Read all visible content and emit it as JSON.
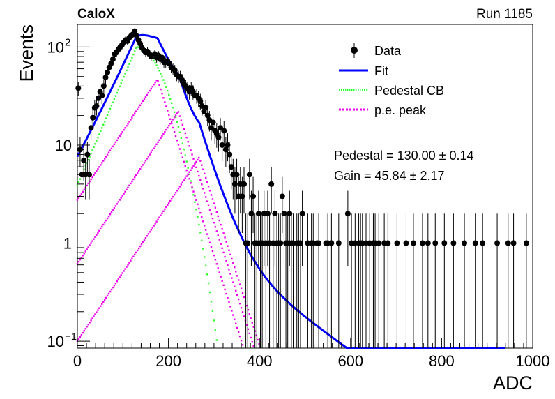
{
  "header": {
    "experiment": "CaloX",
    "run": "Run 1185"
  },
  "fit_results": {
    "pedestal": "Pedestal = 130.00 ± 0.14",
    "gain": "Gain = 45.84 ± 2.17"
  },
  "colors": {
    "data": "#000000",
    "fit": "#0000ff",
    "pedestal": "#33ff33",
    "pe_peak": "#ee00ee"
  },
  "chart_data": {
    "type": "scatter",
    "xlabel": "ADC",
    "ylabel": "Events",
    "xlim": [
      0,
      1000
    ],
    "ylim": [
      0.085,
      170
    ],
    "yscale": "log",
    "grid": false,
    "legend_position": "top-right",
    "x_ticks": [
      "0",
      "200",
      "400",
      "600",
      "800",
      "1000"
    ],
    "y_ticks": [
      {
        "value": 0.1,
        "label": "10",
        "sup": "−1"
      },
      {
        "value": 1,
        "label": "1",
        "sup": ""
      },
      {
        "value": 10,
        "label": "10",
        "sup": ""
      },
      {
        "value": 100,
        "label": "10",
        "sup": "2"
      }
    ],
    "legend": [
      {
        "name": "Data",
        "style": "marker"
      },
      {
        "name": "Fit",
        "style": "solid"
      },
      {
        "name": "Pedestal CB",
        "style": "dotted-green"
      },
      {
        "name": "p.e. peak",
        "style": "dotted-magenta"
      }
    ],
    "series": [
      {
        "name": "Data",
        "points": [
          [
            2,
            38
          ],
          [
            6,
            9
          ],
          [
            10,
            5
          ],
          [
            14,
            7
          ],
          [
            18,
            5
          ],
          [
            22,
            8
          ],
          [
            26,
            5
          ],
          [
            30,
            15
          ],
          [
            34,
            19
          ],
          [
            38,
            24
          ],
          [
            42,
            25
          ],
          [
            46,
            30
          ],
          [
            50,
            35
          ],
          [
            54,
            32
          ],
          [
            58,
            40
          ],
          [
            62,
            49
          ],
          [
            66,
            55
          ],
          [
            70,
            62
          ],
          [
            74,
            68
          ],
          [
            78,
            75
          ],
          [
            82,
            85
          ],
          [
            86,
            88
          ],
          [
            90,
            95
          ],
          [
            94,
            100
          ],
          [
            98,
            105
          ],
          [
            102,
            112
          ],
          [
            106,
            118
          ],
          [
            110,
            115
          ],
          [
            114,
            125
          ],
          [
            118,
            130
          ],
          [
            122,
            135
          ],
          [
            126,
            145
          ],
          [
            130,
            130
          ],
          [
            134,
            118
          ],
          [
            138,
            108
          ],
          [
            142,
            98
          ],
          [
            146,
            92
          ],
          [
            150,
            88
          ],
          [
            154,
            90
          ],
          [
            158,
            85
          ],
          [
            162,
            80
          ],
          [
            166,
            80
          ],
          [
            170,
            85
          ],
          [
            174,
            78
          ],
          [
            178,
            82
          ],
          [
            182,
            75
          ],
          [
            186,
            78
          ],
          [
            190,
            70
          ],
          [
            194,
            70
          ],
          [
            198,
            72
          ],
          [
            202,
            68
          ],
          [
            206,
            62
          ],
          [
            210,
            60
          ],
          [
            214,
            58
          ],
          [
            218,
            52
          ],
          [
            222,
            50
          ],
          [
            226,
            50
          ],
          [
            230,
            46
          ],
          [
            234,
            42
          ],
          [
            238,
            40
          ],
          [
            242,
            38
          ],
          [
            246,
            35
          ],
          [
            250,
            38
          ],
          [
            254,
            35
          ],
          [
            258,
            32
          ],
          [
            262,
            32
          ],
          [
            266,
            30
          ],
          [
            270,
            28
          ],
          [
            274,
            25
          ],
          [
            278,
            22
          ],
          [
            282,
            24
          ],
          [
            286,
            20
          ],
          [
            290,
            18
          ],
          [
            294,
            15
          ],
          [
            298,
            17
          ],
          [
            302,
            14
          ],
          [
            306,
            13
          ],
          [
            310,
            12
          ],
          [
            314,
            15
          ],
          [
            318,
            10
          ],
          [
            322,
            14
          ],
          [
            326,
            9
          ],
          [
            330,
            10
          ],
          [
            334,
            8
          ],
          [
            338,
            6
          ],
          [
            342,
            5
          ],
          [
            346,
            4
          ],
          [
            350,
            5
          ],
          [
            354,
            3
          ],
          [
            358,
            4
          ],
          [
            362,
            3
          ],
          [
            366,
            4
          ],
          [
            370,
            1
          ],
          [
            374,
            1
          ],
          [
            378,
            5
          ],
          [
            382,
            2
          ],
          [
            386,
            3
          ],
          [
            390,
            1
          ],
          [
            394,
            1
          ],
          [
            398,
            2
          ],
          [
            402,
            1
          ],
          [
            406,
            1
          ],
          [
            410,
            2
          ],
          [
            414,
            1
          ],
          [
            418,
            2
          ],
          [
            422,
            1
          ],
          [
            426,
            4
          ],
          [
            430,
            1
          ],
          [
            434,
            2
          ],
          [
            438,
            1
          ],
          [
            442,
            1
          ],
          [
            446,
            1
          ],
          [
            450,
            3
          ],
          [
            454,
            2
          ],
          [
            458,
            1
          ],
          [
            462,
            1
          ],
          [
            466,
            2
          ],
          [
            470,
            1
          ],
          [
            474,
            1
          ],
          [
            482,
            1
          ],
          [
            486,
            1
          ],
          [
            490,
            1
          ],
          [
            494,
            2
          ],
          [
            506,
            1
          ],
          [
            514,
            1
          ],
          [
            518,
            1
          ],
          [
            526,
            1
          ],
          [
            530,
            1
          ],
          [
            546,
            1
          ],
          [
            550,
            1
          ],
          [
            558,
            1
          ],
          [
            574,
            1
          ],
          [
            594,
            2
          ],
          [
            602,
            1
          ],
          [
            610,
            1
          ],
          [
            618,
            1
          ],
          [
            622,
            1
          ],
          [
            626,
            1
          ],
          [
            634,
            1
          ],
          [
            642,
            1
          ],
          [
            650,
            1
          ],
          [
            654,
            1
          ],
          [
            662,
            1
          ],
          [
            674,
            1
          ],
          [
            682,
            1
          ],
          [
            702,
            1
          ],
          [
            722,
            1
          ],
          [
            738,
            1
          ],
          [
            758,
            1
          ],
          [
            770,
            1
          ],
          [
            786,
            1
          ],
          [
            806,
            1
          ],
          [
            826,
            1
          ],
          [
            850,
            1
          ],
          [
            874,
            1
          ],
          [
            890,
            1
          ],
          [
            922,
            1
          ],
          [
            946,
            1
          ],
          [
            958,
            1
          ],
          [
            986,
            1
          ]
        ]
      },
      {
        "name": "Fit",
        "function": "sum of pedestal and p.e. peaks"
      },
      {
        "name": "Pedestal CB",
        "peak_x": 130,
        "peak_y": 100
      },
      {
        "name": "p.e. peak",
        "peaks": [
          {
            "x": 175.84,
            "y": 47
          },
          {
            "x": 221.68,
            "y": 22
          },
          {
            "x": 267.52,
            "y": 7.5
          }
        ]
      }
    ]
  }
}
